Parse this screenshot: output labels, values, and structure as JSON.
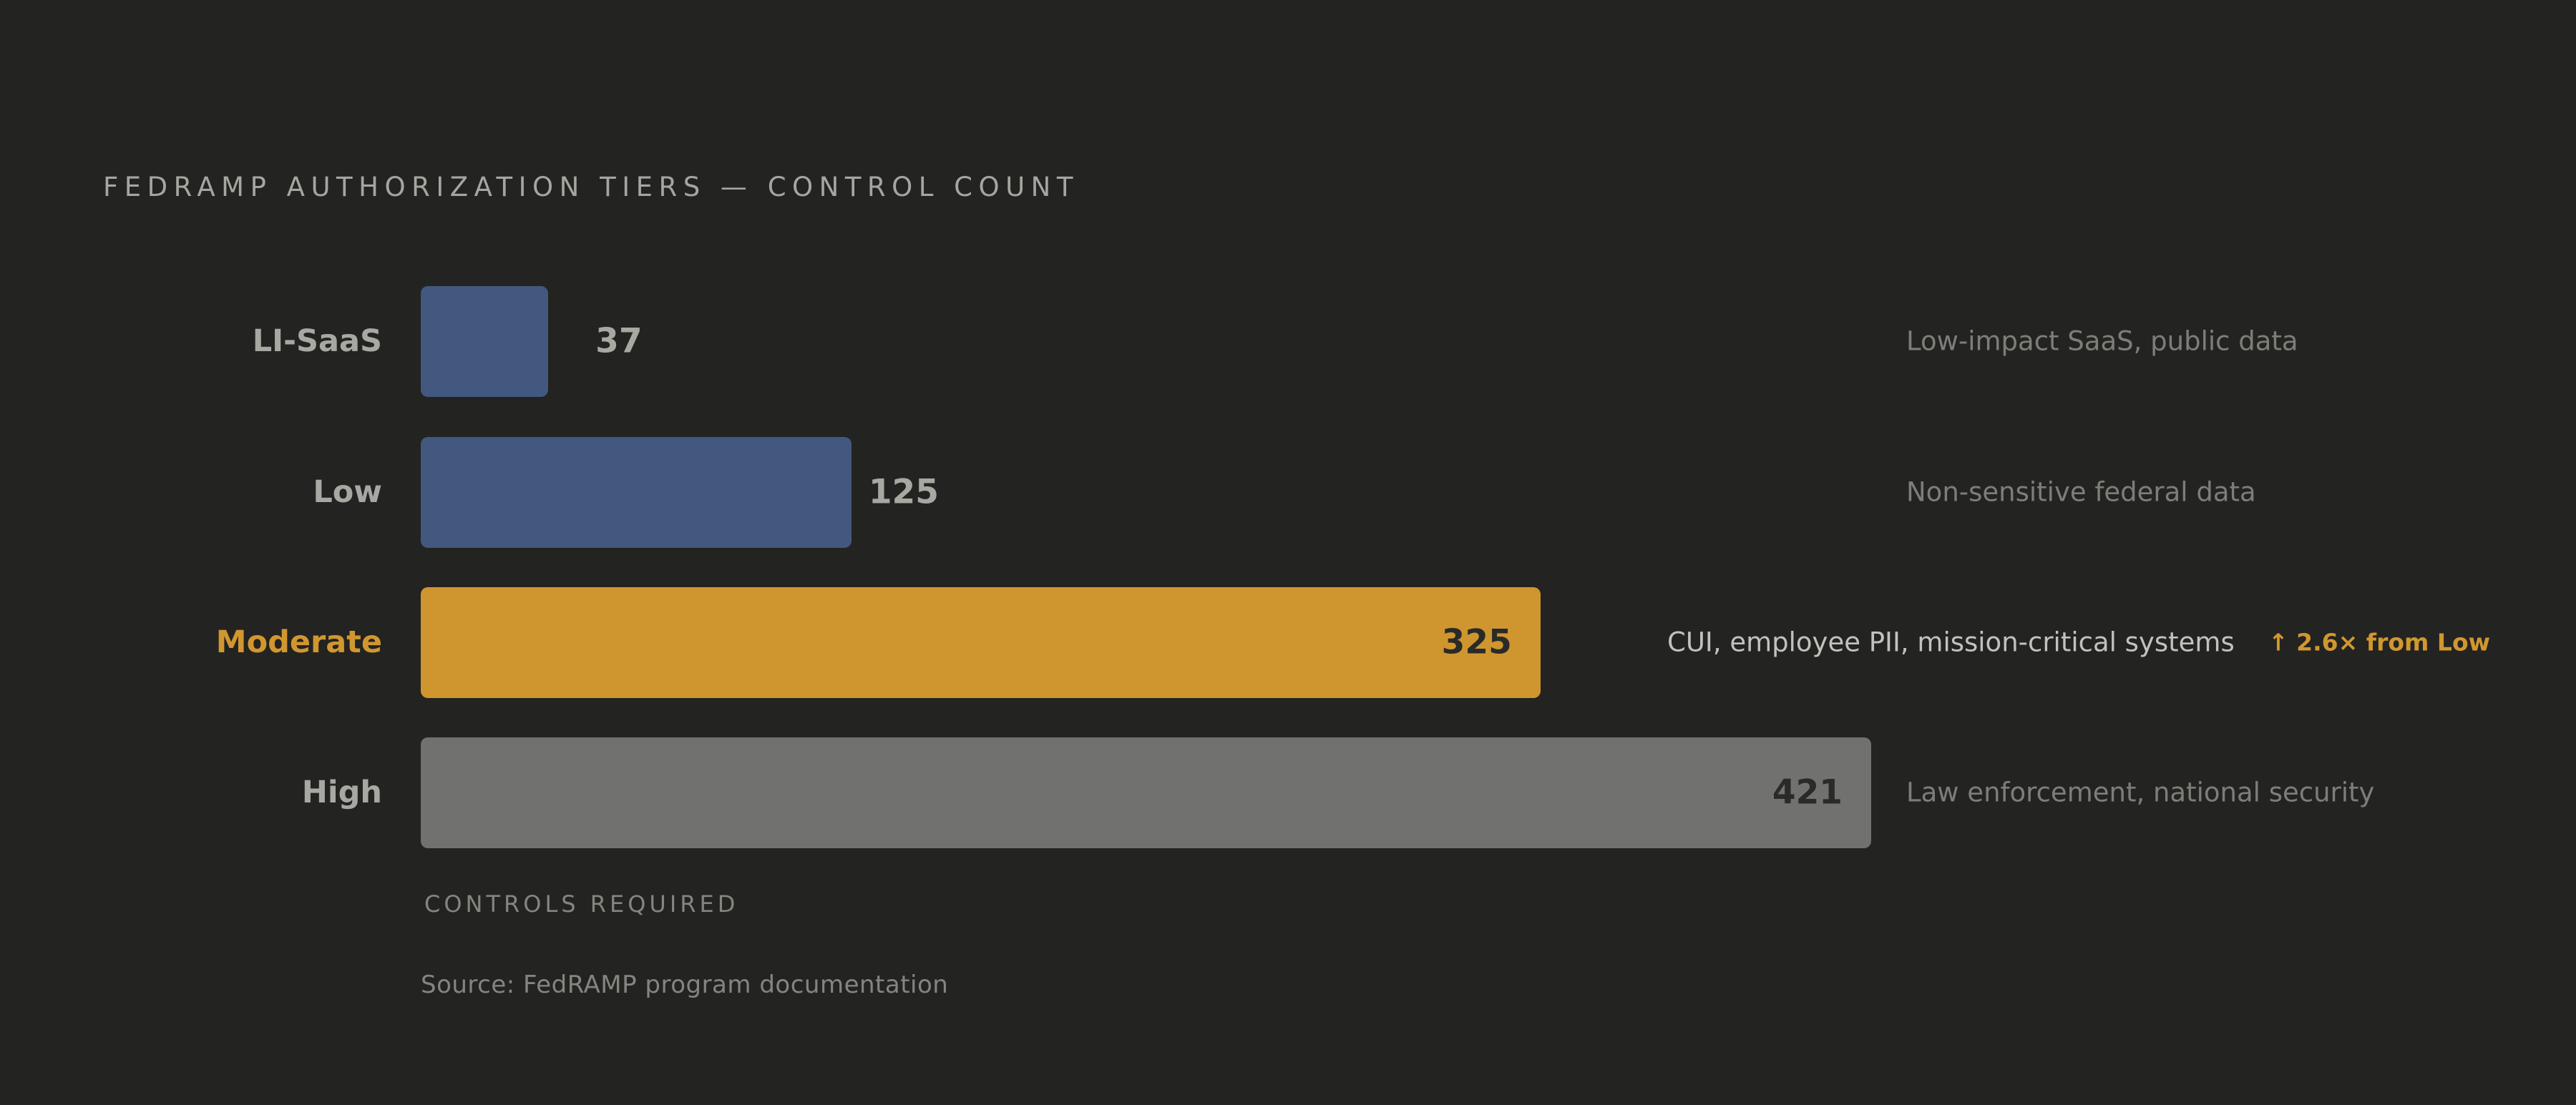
{
  "chart_data": {
    "type": "bar",
    "orientation": "horizontal",
    "title": "FEDRAMP AUTHORIZATION TIERS — CONTROL COUNT",
    "xlabel": "CONTROLS REQUIRED",
    "source": "Source: FedRAMP program documentation",
    "xlim": [
      0,
      421
    ],
    "grid": false,
    "categories": [
      "LI-SaaS",
      "Low",
      "Moderate",
      "High"
    ],
    "values": [
      37,
      125,
      325,
      421
    ],
    "descriptions": [
      "Low-impact SaaS, public data",
      "Non-sensitive federal data",
      "CUI, employee PII, mission-critical systems",
      "Law enforcement, national security"
    ],
    "highlight": "Moderate",
    "callout": "↑ 2.6× from Low",
    "colors": {
      "LI-SaaS": "#43587f",
      "Low": "#43587f",
      "Moderate": "#cf962f",
      "High": "#717170"
    },
    "label_colors": {
      "default": "#a8a8a3",
      "highlight": "#d1972f"
    },
    "inside_label_color": "#2a2a28"
  }
}
